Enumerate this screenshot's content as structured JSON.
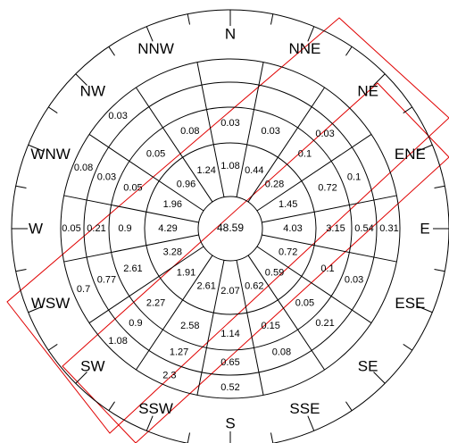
{
  "directions": [
    "N",
    "NNE",
    "NE",
    "ENE",
    "E",
    "ESE",
    "SE",
    "SSE",
    "S",
    "SSW",
    "SW",
    "WSW",
    "W",
    "WNW",
    "NW",
    "NNW"
  ],
  "center_value": "48.59",
  "sector_values": [
    [
      "1.08",
      "0.03",
      ""
    ],
    [
      "0.44",
      "0.03",
      ""
    ],
    [
      "0.28",
      "0.1",
      "0.03"
    ],
    [
      "1.45",
      "0.72",
      "0.1"
    ],
    [
      "4.03",
      "3.15",
      "0.54",
      "0.31"
    ],
    [
      "0.72",
      "0.1",
      "0.03"
    ],
    [
      "0.59",
      "0.05",
      "0.21"
    ],
    [
      "0.62",
      "0.15",
      "0.08"
    ],
    [
      "2.07",
      "1.14",
      "0.65",
      "0.52"
    ],
    [
      "2.61",
      "2.58",
      "1.27",
      "2.3"
    ],
    [
      "1.91",
      "2.27",
      "0.9",
      "1.08"
    ],
    [
      "3.28",
      "2.61",
      "0.77",
      "0.7"
    ],
    [
      "4.29",
      "0.9",
      "0.21",
      "0.05"
    ],
    [
      "1.96",
      "0.05",
      "0.03",
      "0.08"
    ],
    [
      "0.96",
      "0.05",
      "",
      "0.03"
    ],
    [
      "1.24",
      "0.08",
      ""
    ]
  ],
  "colors": {
    "lines": "#000000",
    "band": "#e00000"
  }
}
